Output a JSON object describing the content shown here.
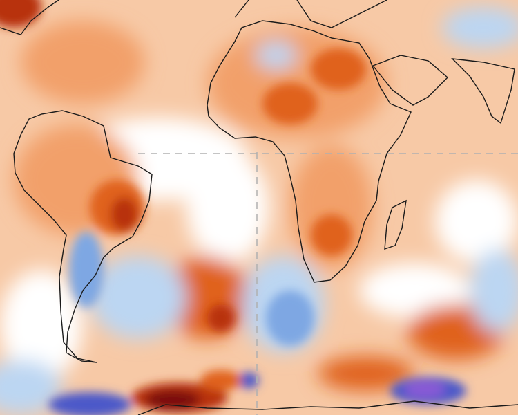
{
  "map": {
    "kind": "temperature-anomaly",
    "colors": {
      "background": "#f7c9a6",
      "warm": "#f2a06a",
      "hot": "#e0621f",
      "very_hot": "#b8300f",
      "extreme_hot": "#7a0a0a",
      "neutral": "#ffffff",
      "cool": "#bcd6f2",
      "cold": "#7ea7e3",
      "very_cold": "#4b59c9",
      "extreme_cold": "#8a5ad6",
      "coastline": "#1a1a1a",
      "gridline": "#b0b0b0"
    }
  }
}
